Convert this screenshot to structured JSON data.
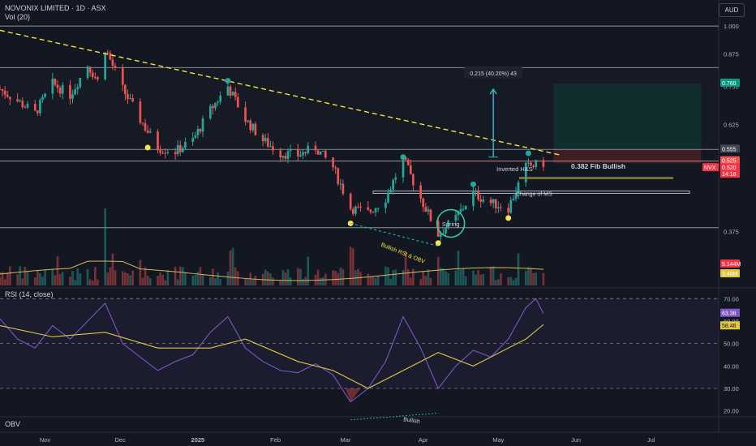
{
  "header": {
    "title": "NOVONIX LIMITED · 1D · ASX",
    "volume_label": "Vol (20)",
    "currency": "AUD",
    "rsi_label": "RSI (14, close)",
    "obv_label": "OBV"
  },
  "colors": {
    "up": "#26a69a",
    "down": "#ef5350",
    "background": "#131722",
    "trendline": "#f5e13c",
    "level_lines": "#b2b5be",
    "rsi_line": "#7e57c2",
    "rsi_ma": "#e0c844",
    "volume_ma": "#d4b85a",
    "annotation_dots": "#f7e24a",
    "projection_arrow": "#2fb5c9"
  },
  "chart_data": [
    {
      "type": "candlestick",
      "title": "NOVONIX LIMITED · 1D · ASX",
      "x_axis": {
        "tick_labels": [
          "Nov",
          "Dec",
          "2025",
          "Feb",
          "Mar",
          "Apr",
          "May",
          "Jun",
          "Jul"
        ],
        "range": [
          "2024-10-14",
          "2025-07-28"
        ]
      },
      "y_axis": {
        "scale": "log",
        "currency": "AUD",
        "tick_labels": [
          "1.000",
          "0.875",
          "0.750",
          "0.625",
          "0.500",
          "0.375"
        ],
        "range": [
          0.29,
          1.04
        ]
      },
      "grid": false,
      "candles_close_path": [
        [
          "2024-10-14",
          0.74
        ],
        [
          "2024-10-21",
          0.7
        ],
        [
          "2024-10-28",
          0.66
        ],
        [
          "2024-11-04",
          0.76
        ],
        [
          "2024-11-11",
          0.72
        ],
        [
          "2024-11-18",
          0.83
        ],
        [
          "2024-11-22",
          0.77
        ],
        [
          "2024-11-25",
          0.9
        ],
        [
          "2024-12-02",
          0.74
        ],
        [
          "2024-12-09",
          0.64
        ],
        [
          "2024-12-16",
          0.56
        ],
        [
          "2024-12-23",
          0.55
        ],
        [
          "2024-12-30",
          0.58
        ],
        [
          "2025-01-06",
          0.67
        ],
        [
          "2025-01-13",
          0.75
        ],
        [
          "2025-01-20",
          0.64
        ],
        [
          "2025-01-27",
          0.58
        ],
        [
          "2025-02-03",
          0.545
        ],
        [
          "2025-02-10",
          0.54
        ],
        [
          "2025-02-17",
          0.56
        ],
        [
          "2025-02-24",
          0.51
        ],
        [
          "2025-03-03",
          0.42
        ],
        [
          "2025-03-10",
          0.41
        ],
        [
          "2025-03-17",
          0.44
        ],
        [
          "2025-03-24",
          0.53
        ],
        [
          "2025-03-31",
          0.44
        ],
        [
          "2025-04-07",
          0.37
        ],
        [
          "2025-04-14",
          0.4
        ],
        [
          "2025-04-21",
          0.45
        ],
        [
          "2025-04-28",
          0.43
        ],
        [
          "2025-05-05",
          0.42
        ],
        [
          "2025-05-12",
          0.51
        ],
        [
          "2025-05-19",
          0.52
        ]
      ],
      "horizontal_levels": [
        1.0,
        0.82,
        0.555,
        0.525,
        0.382
      ],
      "price_labels": [
        {
          "text": "0.760",
          "color": "#089981"
        },
        {
          "text": "0.555",
          "color": "#434651"
        },
        {
          "text": "0.525",
          "color": "#ef5350"
        },
        {
          "text": "0.520",
          "color": "#f23645"
        },
        {
          "text": "NVX",
          "color": "#f23645"
        },
        {
          "text": "14:18",
          "color": "#f23645"
        },
        {
          "text": "5.144M",
          "color": "#f23645"
        },
        {
          "text": "3.48M",
          "color": "#e0c844"
        }
      ],
      "annotations": [
        "0.215 (40.20%) 43",
        "Inverted H&S",
        "0.382 Fib Bullish",
        "Change of MS",
        "Spring",
        "Bullish RSI & OBV"
      ],
      "trendline": {
        "from": [
          "2024-10-14",
          0.98
        ],
        "to": [
          "2025-05-26",
          0.54
        ]
      }
    },
    {
      "type": "line",
      "title": "RSI (14, close)",
      "y_axis": {
        "tick_labels": [
          "70.00",
          "60.00",
          "50.00",
          "40.00",
          "30.00",
          "20.00"
        ],
        "range": [
          17,
          73
        ]
      },
      "reference_lines": [
        70,
        50,
        30
      ],
      "series": [
        {
          "name": "RSI",
          "values": [
            [
              "2024-10-14",
              61
            ],
            [
              "2024-10-21",
              52
            ],
            [
              "2024-10-28",
              48
            ],
            [
              "2024-11-04",
              58
            ],
            [
              "2024-11-11",
              52
            ],
            [
              "2024-11-18",
              60
            ],
            [
              "2024-11-25",
              68
            ],
            [
              "2024-12-02",
              50
            ],
            [
              "2024-12-09",
              44
            ],
            [
              "2024-12-16",
              38
            ],
            [
              "2024-12-23",
              42
            ],
            [
              "2024-12-30",
              45
            ],
            [
              "2025-01-06",
              55
            ],
            [
              "2025-01-13",
              62
            ],
            [
              "2025-01-20",
              48
            ],
            [
              "2025-01-27",
              42
            ],
            [
              "2025-02-03",
              38
            ],
            [
              "2025-02-10",
              37
            ],
            [
              "2025-02-17",
              41
            ],
            [
              "2025-02-24",
              36
            ],
            [
              "2025-03-03",
              24
            ],
            [
              "2025-03-10",
              30
            ],
            [
              "2025-03-17",
              42
            ],
            [
              "2025-03-24",
              62
            ],
            [
              "2025-03-31",
              48
            ],
            [
              "2025-04-07",
              30
            ],
            [
              "2025-04-14",
              40
            ],
            [
              "2025-04-21",
              47
            ],
            [
              "2025-04-28",
              44
            ],
            [
              "2025-05-05",
              52
            ],
            [
              "2025-05-12",
              66
            ],
            [
              "2025-05-16",
              70
            ],
            [
              "2025-05-19",
              63.36
            ]
          ]
        },
        {
          "name": "RSI-based MA",
          "values": [
            [
              "2024-10-14",
              58
            ],
            [
              "2024-11-04",
              53
            ],
            [
              "2024-11-25",
              55
            ],
            [
              "2024-12-16",
              48
            ],
            [
              "2025-01-06",
              48
            ],
            [
              "2025-01-20",
              52
            ],
            [
              "2025-02-10",
              42
            ],
            [
              "2025-02-24",
              38
            ],
            [
              "2025-03-10",
              30
            ],
            [
              "2025-03-24",
              38
            ],
            [
              "2025-04-07",
              46
            ],
            [
              "2025-04-21",
              40
            ],
            [
              "2025-05-05",
              48
            ],
            [
              "2025-05-12",
              52
            ],
            [
              "2025-05-19",
              58.46
            ]
          ]
        }
      ],
      "last_values": [
        "63.36",
        "58.46"
      ],
      "annotations": [
        "Bullish"
      ]
    }
  ]
}
